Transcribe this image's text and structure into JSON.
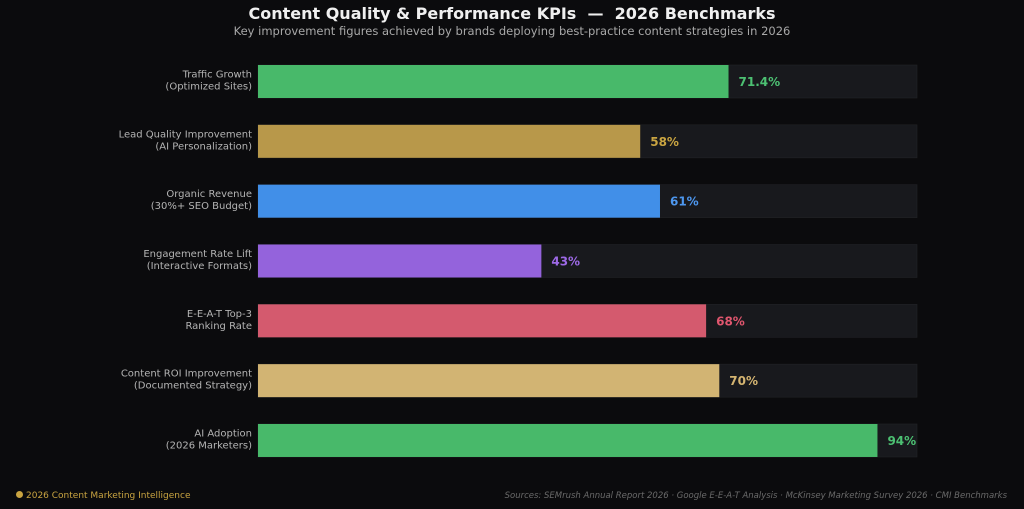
{
  "title": "Content Quality & Performance KPIs  —  2026 Benchmarks",
  "subtitle": "Key improvement figures achieved by brands deploying best-practice content strategies in 2026",
  "footer": {
    "left": "2026 Content Marketing Intelligence",
    "right": "Sources: SEMrush Annual Report 2026 · Google E-E-A-T Analysis · McKinsey Marketing Survey 2026 · CMI Benchmarks"
  },
  "colors": {
    "background": "#0b0b0d",
    "track": "#18191d",
    "label": "#b4b4b4"
  },
  "chart_data": {
    "type": "bar",
    "orientation": "horizontal",
    "xlim": [
      0,
      100
    ],
    "grid": false,
    "categories": [
      [
        "Traffic Growth",
        "(Optimized Sites)"
      ],
      [
        "Lead Quality Improvement",
        "(AI Personalization)"
      ],
      [
        "Organic Revenue",
        "(30%+ SEO Budget)"
      ],
      [
        "Engagement Rate Lift",
        "(Interactive Formats)"
      ],
      [
        "E-E-A-T Top-3",
        "Ranking Rate"
      ],
      [
        "Content ROI Improvement",
        "(Documented Strategy)"
      ],
      [
        "AI Adoption",
        "(2026 Marketers)"
      ]
    ],
    "values": [
      71.4,
      58,
      61,
      43,
      68,
      70,
      94
    ],
    "value_labels": [
      "71.4%",
      "58%",
      "61%",
      "43%",
      "68%",
      "70%",
      "94%"
    ],
    "bar_colors": [
      "#48b96a",
      "#b8984a",
      "#418fe8",
      "#9463dc",
      "#d45a6e",
      "#d2b473",
      "#48b96a"
    ],
    "label_colors": [
      "#4cc072",
      "#c9a441",
      "#4d97ef",
      "#9d69e6",
      "#e0566e",
      "#d4b471",
      "#4cc072"
    ]
  }
}
